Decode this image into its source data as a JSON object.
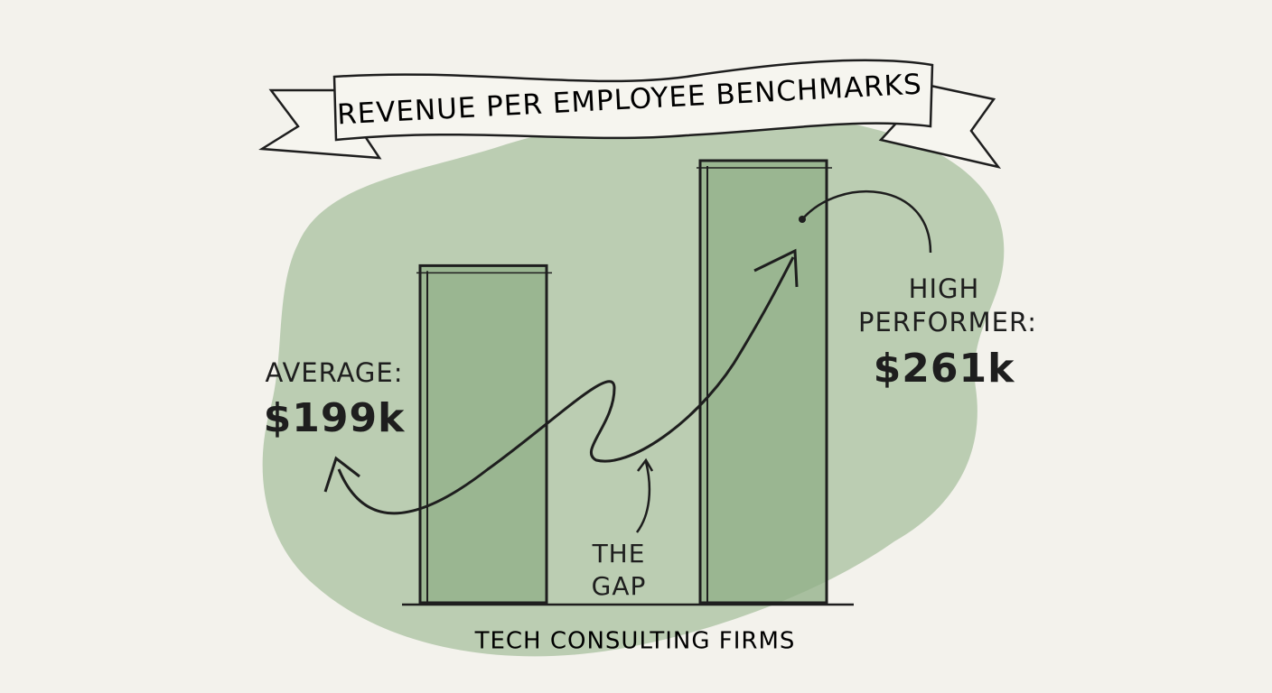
{
  "chart_data": {
    "type": "bar",
    "title": "REVENUE PER EMPLOYEE BENCHMARKS",
    "xlabel": "TECH CONSULTING FIRMS",
    "annotation": "THE GAP",
    "categories": [
      "AVERAGE:",
      "HIGH PERFORMER:"
    ],
    "values": [
      199,
      261
    ],
    "value_labels": [
      "$199k",
      "$261k"
    ],
    "color": "#8fae86"
  }
}
